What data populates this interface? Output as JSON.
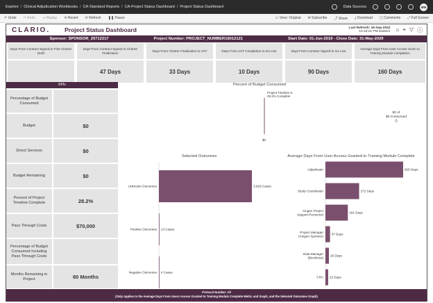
{
  "topbar": {
    "crumbs": [
      "Explore",
      "Clinical Adjudication Workbooks",
      "CA-Standard Reports",
      "CA-Project Status Dashboard",
      "Project Status Dashboard"
    ],
    "data_sources": "Data Sources",
    "avatar": "MM"
  },
  "toolbar": {
    "undo": "Undo",
    "redo": "Redo",
    "replay": "Replay",
    "revert": "Revert",
    "refresh": "Refresh",
    "pause": "Pause",
    "view_original": "View: Original",
    "subscribe": "Subscribe",
    "share": "Share",
    "download": "Download",
    "comments": "Comments",
    "fullscreen": "Full Screen"
  },
  "header": {
    "logo": "CLARIO.",
    "title": "Project Status Dashboard",
    "last_refresh": "Last Refresh: 19-Sep-2022",
    "refresh_time": "10:18:21 PM Eastern"
  },
  "infobar": {
    "sponsor": "Sponsor: SPONSOR_25712217",
    "project": "Project Number: PROJECT_NUMBER16012121",
    "dates": "Start Date: 01-Jun-2019 - Close Date: 31-May-2029"
  },
  "metrics": [
    {
      "label": "Days From Contract Signed to First Charter Draft",
      "value": ""
    },
    {
      "label": "Days From Contract Signed to Charter Finalization",
      "value": "47 Days"
    },
    {
      "label": "Days From Charter Finalization to UAT",
      "value": "33 Days"
    },
    {
      "label": "Days From UAT Completion to Go Live",
      "value": "10 Days"
    },
    {
      "label": "Days From Contract Signed to Go Live",
      "value": "90 Days"
    },
    {
      "label": "Average Days From User Access Given to Training Module Completion",
      "value": "160 Days"
    }
  ],
  "kpis": {
    "header": "KPIs",
    "rows": [
      {
        "label": "Percentage of Budget Consumed",
        "value": ""
      },
      {
        "label": "Budget",
        "value": "$0"
      },
      {
        "label": "Direct Services",
        "value": "$0"
      },
      {
        "label": "Budget Remaining",
        "value": "$0"
      },
      {
        "label": "Percent of Project Timeline Complete",
        "value": "28.2%"
      },
      {
        "label": "Pass Through Costs",
        "value": "$70,000"
      },
      {
        "label": "Percentage of Budget Consumed Including Pass Through Costs",
        "value": ""
      },
      {
        "label": "Months Remaining in Project",
        "value": "80 Months"
      }
    ]
  },
  "budget_chart": {
    "title": "Percent of Budget Consumed",
    "timeline_label_1": "Project Timeline is",
    "timeline_label_2": "28.2% Complete",
    "axis_label": "$0",
    "consumed_1": "$0 of",
    "consumed_2": "$0 Consumed",
    "consumed_3": "()"
  },
  "outcomes_chart": {
    "title": "Selected Outcomes"
  },
  "training_chart": {
    "title": "Average Days From User Access Granted to Training Module Complete"
  },
  "chart_data": [
    {
      "type": "bar",
      "title": "Selected Outcomes",
      "categories": [
        "Unknown Outcomes",
        "Positive Outcomes",
        "Negative Outcomes"
      ],
      "values": [
        3929,
        13,
        4
      ],
      "data_labels": [
        "3,929 Cases",
        "13 Cases",
        "4 Cases"
      ],
      "orientation": "horizontal",
      "color": "#7a4f6e"
    },
    {
      "type": "bar",
      "title": "Average Days From User Access Granted to Training Module Complete",
      "categories": [
        "Adjudicator",
        "Study Coordinator",
        "Amgen Project Support Personnel",
        "Project Manager (Amgen Sponsor)",
        "Data Manager (Bioclinica)",
        "CRA"
      ],
      "values": [
        628,
        272,
        181,
        37,
        28,
        22
      ],
      "data_labels": [
        "628 Days",
        "272 Days",
        "181 Days",
        "37 Days",
        "28 Days",
        "22 Days"
      ],
      "orientation": "horizontal",
      "color": "#7a4f6e"
    }
  ],
  "footer": {
    "line1": "Protocol Number: All",
    "line2": "(Only Applies to the Average Days From Users Access Granted to Training Module Complete Metric and Graph, and the Selected Outcomes Graph)"
  }
}
